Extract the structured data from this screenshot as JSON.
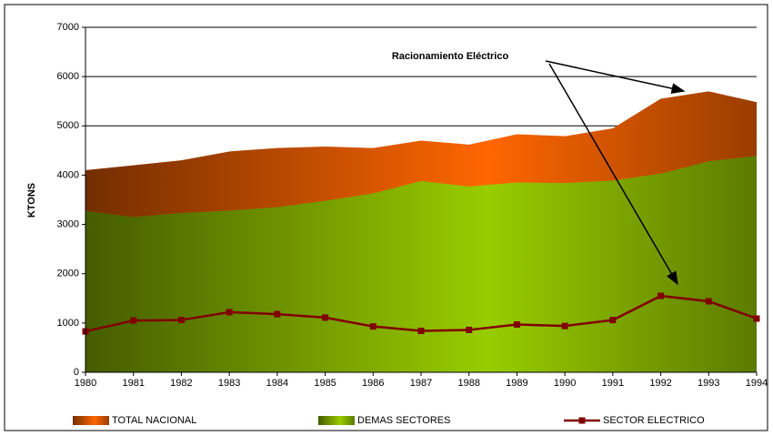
{
  "chart_data": {
    "type": "area",
    "y_label": "KTONS",
    "x": [
      1980,
      1981,
      1982,
      1983,
      1984,
      1985,
      1986,
      1987,
      1988,
      1989,
      1990,
      1991,
      1992,
      1993,
      1994
    ],
    "xlim": [
      1980,
      1994
    ],
    "xticks": [
      1980,
      1981,
      1982,
      1983,
      1984,
      1985,
      1986,
      1987,
      1988,
      1989,
      1990,
      1991,
      1992,
      1993,
      1994
    ],
    "ylim": [
      0,
      7000
    ],
    "yticks": [
      0,
      1000,
      2000,
      3000,
      4000,
      5000,
      6000,
      7000
    ],
    "grid": true,
    "legend": "bottom",
    "series": [
      {
        "name": "TOTAL NACIONAL",
        "type": "area",
        "color": "#ff6600",
        "values": [
          4100,
          4200,
          4300,
          4480,
          4550,
          4580,
          4550,
          4700,
          4620,
          4830,
          4790,
          4950,
          5550,
          5700,
          5480
        ]
      },
      {
        "name": "DEMAS SECTORES",
        "type": "area",
        "color": "#99cc00",
        "values": [
          3270,
          3150,
          3230,
          3280,
          3350,
          3480,
          3630,
          3880,
          3770,
          3850,
          3840,
          3890,
          4030,
          4280,
          4390
        ]
      },
      {
        "name": "SECTOR ELECTRICO",
        "type": "line",
        "color": "#800000",
        "values": [
          830,
          1050,
          1060,
          1220,
          1180,
          1110,
          930,
          840,
          860,
          970,
          940,
          1060,
          1550,
          1440,
          1090
        ]
      }
    ],
    "annotations": [
      {
        "text": "Racionamiento Eléctrico"
      }
    ]
  }
}
